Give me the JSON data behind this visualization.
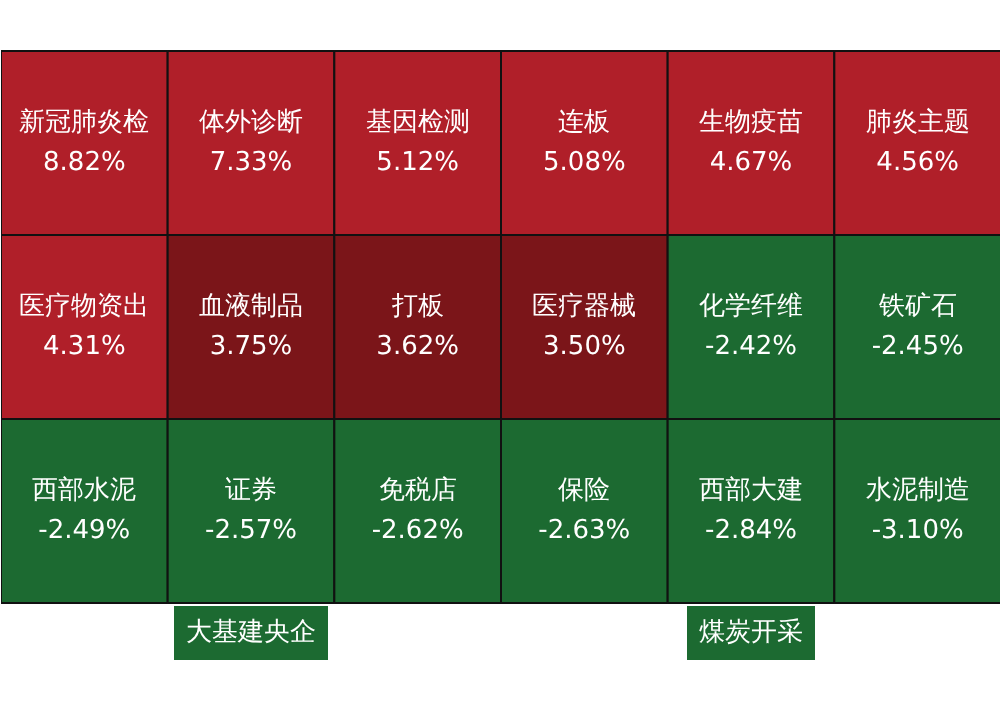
{
  "chart_data": {
    "type": "other",
    "categories": [
      "新冠肺炎检",
      "体外诊断",
      "基因检测",
      "连板",
      "生物疫苗",
      "肺炎主题",
      "医疗物资出",
      "血液制品",
      "打板",
      "医疗器械",
      "化学纤维",
      "铁矿石",
      "西部水泥",
      "证券",
      "免税店",
      "保险",
      "西部大建",
      "水泥制造"
    ],
    "values": [
      8.82,
      7.33,
      5.12,
      5.08,
      4.67,
      4.56,
      4.31,
      3.75,
      3.62,
      3.5,
      -2.42,
      -2.45,
      -2.49,
      -2.57,
      -2.62,
      -2.63,
      -2.84,
      -3.1
    ],
    "value_labels": [
      "8.82%",
      "7.33%",
      "5.12%",
      "5.08%",
      "4.67%",
      "4.56%",
      "4.31%",
      "3.75%",
      "3.62%",
      "3.50%",
      "-2.42%",
      "-2.45%",
      "-2.49%",
      "-2.57%",
      "-2.62%",
      "-2.63%",
      "-2.84%",
      "-3.10%"
    ],
    "colors": [
      "#b01f29",
      "#b01f29",
      "#b01f29",
      "#b01f29",
      "#b01f29",
      "#b01f29",
      "#b01f29",
      "#7b1519",
      "#7b1519",
      "#7b1519",
      "#1c6a31",
      "#1c6a31",
      "#1c6a31",
      "#1c6a31",
      "#1c6a31",
      "#1c6a31",
      "#1c6a31",
      "#1c6a31"
    ],
    "annotations": [
      "大基建央企",
      "煤炭开采"
    ]
  }
}
